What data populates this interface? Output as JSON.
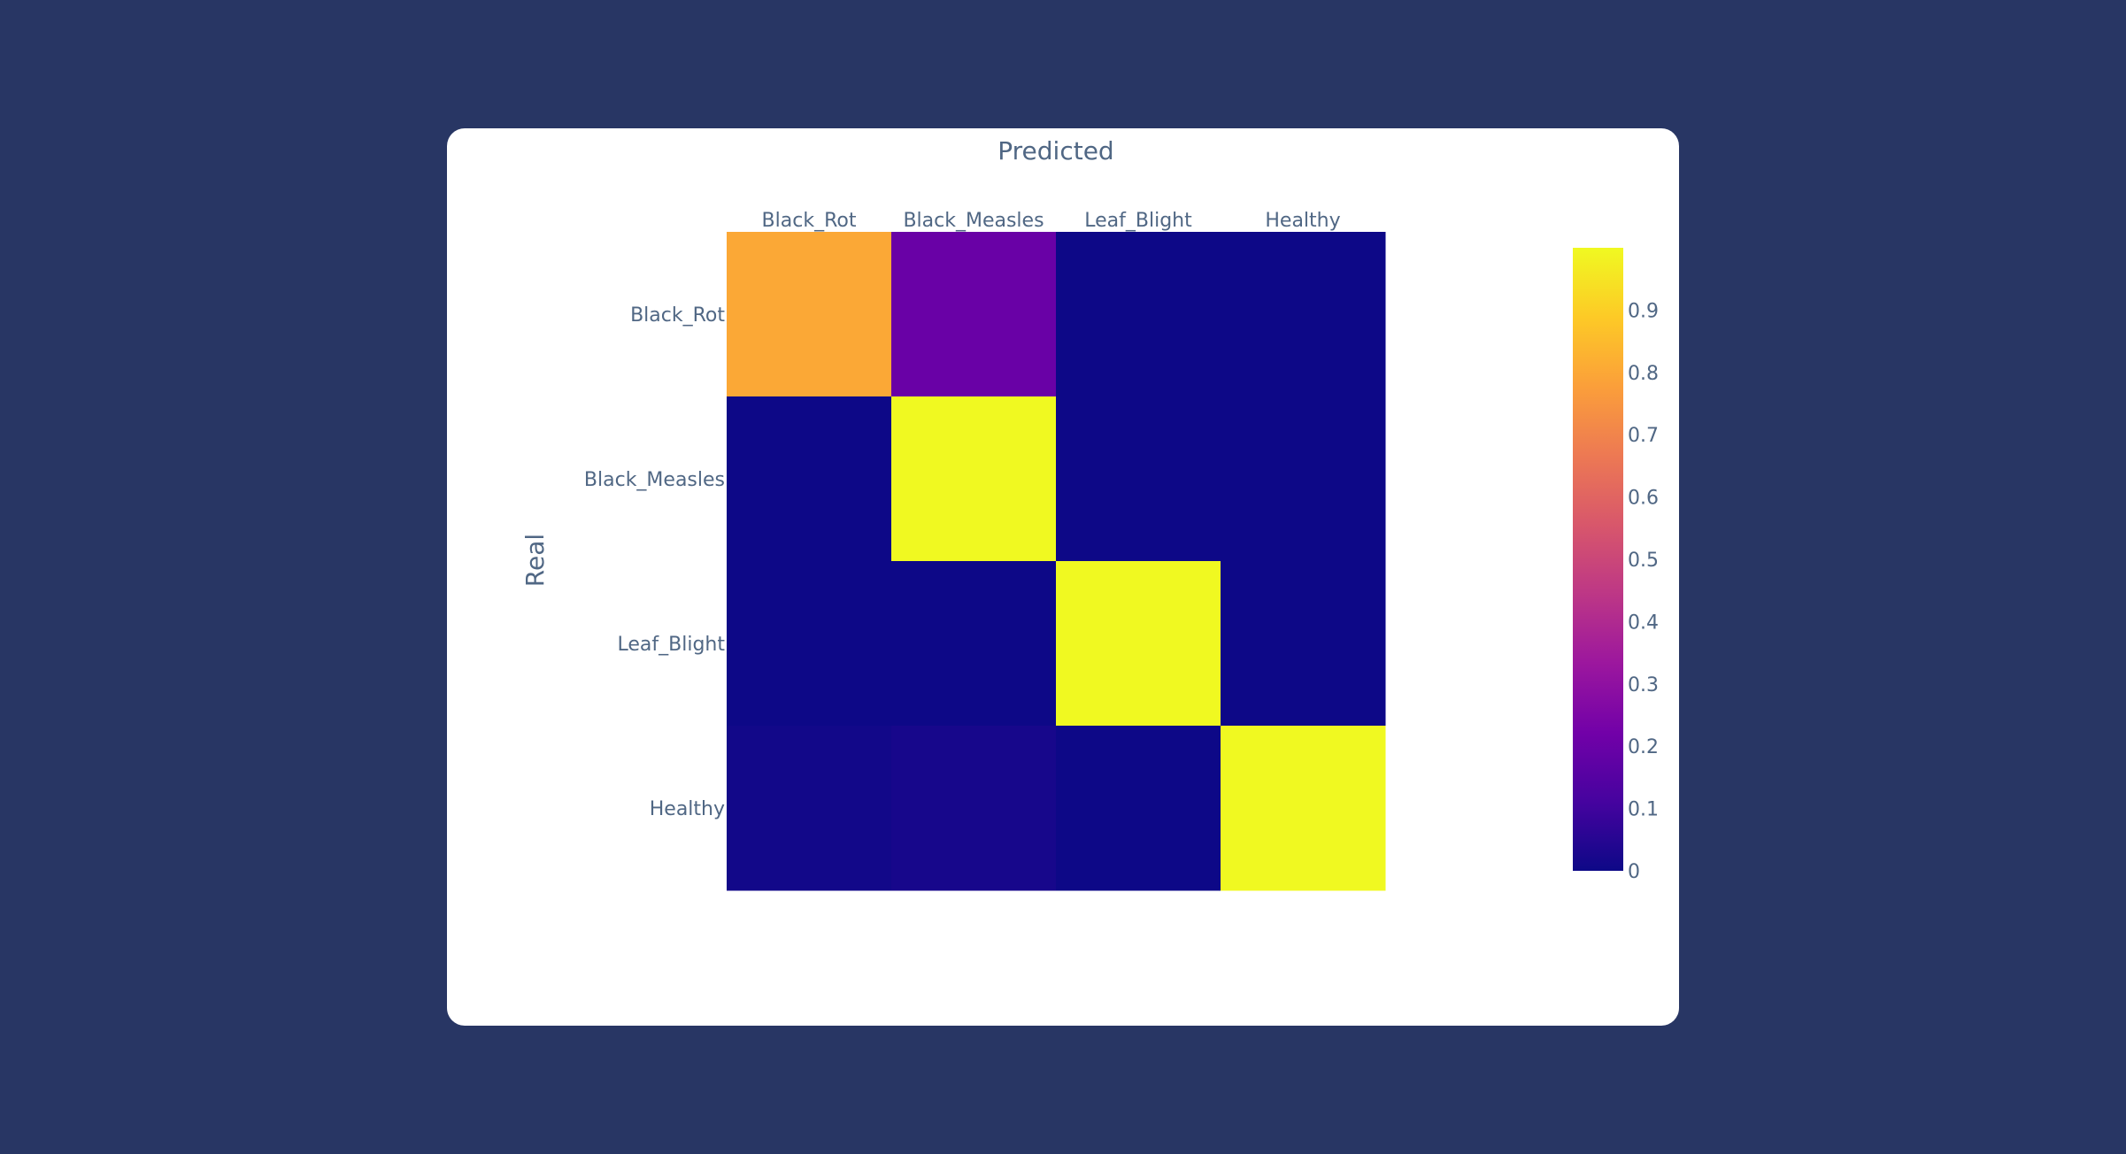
{
  "chart_data": {
    "type": "heatmap",
    "xlabel": "Predicted",
    "ylabel": "Real",
    "x": [
      "Black_Rot",
      "Black_Measles",
      "Leaf_Blight",
      "Healthy"
    ],
    "y": [
      "Black_Rot",
      "Black_Measles",
      "Leaf_Blight",
      "Healthy"
    ],
    "z": [
      [
        0.8,
        0.2,
        0.0,
        0.0
      ],
      [
        0.0,
        1.0,
        0.0,
        0.0
      ],
      [
        0.0,
        0.0,
        1.0,
        0.0
      ],
      [
        0.01,
        0.02,
        0.0,
        1.0
      ]
    ],
    "zlim": [
      0,
      1
    ],
    "colorbar": {
      "ticks": [
        0,
        0.1,
        0.2,
        0.3,
        0.4,
        0.5,
        0.6,
        0.7,
        0.8,
        0.9
      ],
      "tick_labels": [
        "0",
        "0.1",
        "0.2",
        "0.3",
        "0.4",
        "0.5",
        "0.6",
        "0.7",
        "0.8",
        "0.9"
      ]
    },
    "colorscale": [
      "#0d0887",
      "#46039f",
      "#7201a8",
      "#9c179e",
      "#bd3786",
      "#d8576b",
      "#ed7953",
      "#fb9f3a",
      "#fdca26",
      "#f0f921"
    ],
    "x_axis_position": "top",
    "grid": false,
    "legend": "colorbar-right"
  },
  "colors": {
    "page_background": "#283664",
    "card_background": "#ffffff",
    "text": "#506784"
  }
}
